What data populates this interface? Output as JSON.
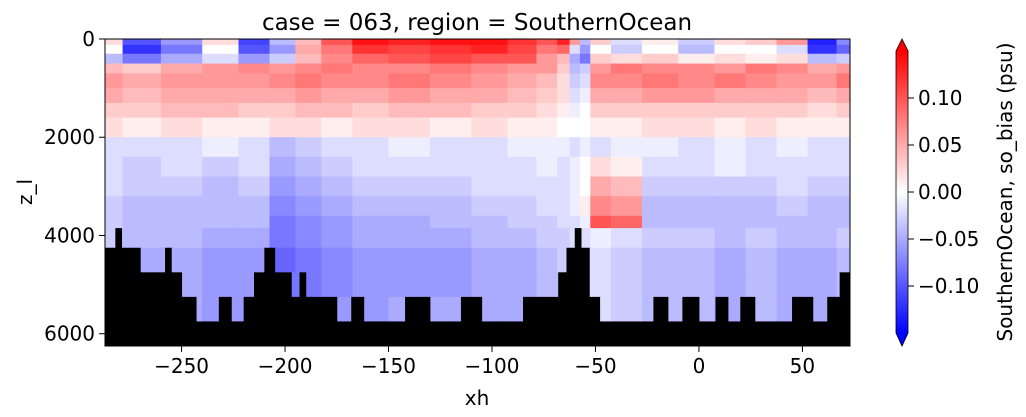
{
  "chart_data": {
    "type": "heatmap",
    "title": "case = 063, region = SouthernOcean",
    "xlabel": "xh",
    "ylabel": "z_l",
    "xlim": [
      -287,
      73
    ],
    "ylim": [
      6250,
      0
    ],
    "y_inverted": true,
    "x_ticks": [
      -250,
      -200,
      -150,
      -100,
      -50,
      0,
      50
    ],
    "x_tick_labels": [
      "−250",
      "−200",
      "−150",
      "−100",
      "−50",
      "0",
      "50"
    ],
    "y_ticks": [
      0,
      2000,
      4000,
      6000
    ],
    "y_tick_labels": [
      "0",
      "2000",
      "4000",
      "6000"
    ],
    "colorbar": {
      "label": "SouthernOcean, so_bias (psu)",
      "min": -0.15,
      "max": 0.15,
      "cmap": "bwr",
      "extend": "both",
      "ticks": [
        0.1,
        0.05,
        0.0,
        -0.05,
        -0.1
      ],
      "tick_labels": [
        "0.10",
        "0.05",
        "0.00",
        "−0.05",
        "−0.10"
      ]
    },
    "land_color": "#000000",
    "colors": {
      "positive": "#ff0000",
      "neutral": "#ffffff",
      "negative": "#0000ff"
    },
    "depth_levels": [
      0,
      120,
      300,
      500,
      700,
      1000,
      1300,
      1600,
      2000,
      2400,
      2800,
      3200,
      3600,
      3850,
      4250,
      4750,
      5250,
      5750,
      6250
    ],
    "x_nodes": [
      -287,
      -270,
      -250,
      -230,
      -215,
      -200,
      -190,
      -175,
      -160,
      -140,
      -120,
      -100,
      -85,
      -72,
      -65,
      -60,
      -55,
      -50,
      -35,
      -20,
      0,
      15,
      30,
      45,
      60,
      73
    ],
    "bias_rows": [
      [
        0.02,
        -0.1,
        -0.06,
        0.02,
        -0.11,
        -0.04,
        0.04,
        0.1,
        0.14,
        0.13,
        0.14,
        0.14,
        0.12,
        0.1,
        0.13,
        0.06,
        -0.04,
        0.03,
        -0.02,
        0.01,
        -0.03,
        0.02,
        0.03,
        0.06,
        -0.13,
        -0.07
      ],
      [
        0.0,
        -0.12,
        -0.08,
        0.0,
        -0.1,
        -0.06,
        0.05,
        0.08,
        0.12,
        0.11,
        0.12,
        0.13,
        0.11,
        0.08,
        0.09,
        -0.02,
        -0.06,
        0.0,
        -0.03,
        0.0,
        -0.04,
        0.0,
        0.0,
        -0.02,
        -0.12,
        -0.09
      ],
      [
        -0.04,
        -0.08,
        -0.05,
        -0.02,
        -0.06,
        -0.03,
        0.04,
        0.07,
        0.09,
        0.1,
        0.11,
        0.1,
        0.1,
        0.06,
        0.04,
        -0.05,
        -0.08,
        0.03,
        0.02,
        0.03,
        0.01,
        0.02,
        0.01,
        0.02,
        -0.04,
        -0.03
      ],
      [
        0.04,
        0.03,
        0.05,
        0.06,
        0.07,
        0.06,
        0.07,
        0.08,
        0.07,
        0.07,
        0.08,
        0.07,
        0.06,
        0.06,
        0.03,
        -0.04,
        -0.03,
        0.06,
        0.08,
        0.07,
        0.07,
        0.06,
        0.08,
        0.07,
        0.05,
        0.06
      ],
      [
        0.06,
        0.05,
        0.06,
        0.06,
        0.06,
        0.07,
        0.08,
        0.07,
        0.07,
        0.08,
        0.07,
        0.06,
        0.05,
        0.04,
        0.02,
        -0.03,
        -0.02,
        0.07,
        0.07,
        0.08,
        0.07,
        0.08,
        0.07,
        0.06,
        0.06,
        0.08
      ],
      [
        0.05,
        0.04,
        0.05,
        0.05,
        0.05,
        0.05,
        0.06,
        0.05,
        0.05,
        0.06,
        0.05,
        0.05,
        0.04,
        0.03,
        0.02,
        -0.02,
        -0.01,
        0.05,
        0.05,
        0.06,
        0.06,
        0.05,
        0.05,
        0.05,
        0.04,
        0.05
      ],
      [
        0.03,
        0.03,
        0.04,
        0.04,
        0.03,
        0.03,
        0.04,
        0.04,
        0.03,
        0.04,
        0.04,
        0.03,
        0.03,
        0.02,
        0.01,
        -0.01,
        0.0,
        0.03,
        0.03,
        0.03,
        0.03,
        0.03,
        0.03,
        0.03,
        0.02,
        0.03
      ],
      [
        0.02,
        0.01,
        0.02,
        0.01,
        0.01,
        0.02,
        0.02,
        0.01,
        0.02,
        0.02,
        0.01,
        0.02,
        0.01,
        0.01,
        0.0,
        0.0,
        0.0,
        0.01,
        0.01,
        0.02,
        0.02,
        0.01,
        0.02,
        0.01,
        0.01,
        0.01
      ],
      [
        -0.02,
        -0.02,
        -0.02,
        -0.01,
        -0.02,
        -0.04,
        -0.03,
        -0.02,
        -0.02,
        -0.01,
        -0.02,
        -0.02,
        -0.01,
        -0.01,
        -0.01,
        -0.02,
        -0.01,
        -0.02,
        -0.01,
        -0.01,
        -0.02,
        -0.01,
        -0.02,
        -0.01,
        -0.02,
        -0.02
      ],
      [
        -0.02,
        -0.03,
        -0.02,
        -0.03,
        -0.02,
        -0.05,
        -0.04,
        -0.03,
        -0.02,
        -0.02,
        -0.02,
        -0.02,
        -0.02,
        -0.01,
        -0.02,
        -0.01,
        0.0,
        0.02,
        0.01,
        -0.02,
        -0.02,
        -0.01,
        -0.02,
        -0.02,
        -0.02,
        -0.02
      ],
      [
        -0.02,
        -0.03,
        -0.03,
        -0.04,
        -0.03,
        -0.06,
        -0.05,
        -0.04,
        -0.03,
        -0.03,
        -0.03,
        -0.02,
        -0.02,
        -0.02,
        -0.02,
        -0.01,
        0.0,
        0.05,
        0.04,
        -0.03,
        -0.03,
        -0.03,
        -0.03,
        -0.02,
        -0.03,
        -0.03
      ],
      [
        -0.03,
        -0.04,
        -0.04,
        -0.04,
        -0.04,
        -0.07,
        -0.06,
        -0.05,
        -0.04,
        -0.04,
        -0.04,
        -0.03,
        -0.03,
        -0.02,
        -0.02,
        -0.01,
        0.01,
        0.07,
        0.06,
        -0.04,
        -0.04,
        -0.04,
        -0.04,
        -0.03,
        -0.04,
        -0.04
      ],
      [
        -0.03,
        -0.04,
        -0.04,
        -0.04,
        -0.04,
        -0.08,
        -0.07,
        -0.06,
        -0.05,
        -0.05,
        -0.04,
        -0.04,
        -0.03,
        -0.03,
        -0.02,
        -0.02,
        -0.01,
        0.1,
        0.09,
        -0.04,
        -0.04,
        -0.04,
        -0.04,
        -0.04,
        -0.04,
        -0.04
      ],
      [
        -0.03,
        -0.04,
        -0.04,
        -0.05,
        -0.05,
        -0.08,
        -0.07,
        -0.06,
        -0.05,
        -0.05,
        -0.05,
        -0.04,
        -0.04,
        -0.03,
        -0.03,
        -0.02,
        -0.02,
        -0.01,
        -0.02,
        -0.03,
        -0.03,
        -0.04,
        -0.03,
        -0.04,
        -0.04,
        -0.03
      ],
      [
        -0.04,
        -0.05,
        -0.05,
        -0.06,
        -0.06,
        -0.09,
        -0.08,
        -0.07,
        -0.06,
        -0.06,
        -0.06,
        -0.05,
        -0.05,
        -0.04,
        -0.03,
        -0.03,
        -0.02,
        -0.02,
        -0.03,
        -0.04,
        -0.04,
        -0.05,
        -0.04,
        -0.05,
        -0.05,
        -0.04
      ],
      [
        -0.04,
        -0.05,
        -0.05,
        -0.06,
        -0.06,
        -0.08,
        -0.08,
        -0.07,
        -0.06,
        -0.06,
        -0.06,
        -0.05,
        -0.05,
        -0.04,
        -0.04,
        -0.03,
        -0.02,
        -0.02,
        -0.03,
        -0.04,
        -0.04,
        -0.05,
        -0.04,
        -0.05,
        -0.05,
        -0.04
      ],
      [
        -0.04,
        -0.05,
        -0.05,
        -0.06,
        -0.06,
        -0.07,
        -0.07,
        -0.06,
        -0.06,
        -0.05,
        -0.05,
        -0.05,
        -0.05,
        -0.04,
        -0.04,
        -0.03,
        -0.02,
        -0.02,
        -0.03,
        -0.04,
        -0.04,
        -0.05,
        -0.04,
        -0.05,
        -0.05,
        -0.04
      ],
      [
        -0.04,
        -0.05,
        -0.05,
        -0.06,
        -0.06,
        -0.07,
        -0.07,
        -0.06,
        -0.06,
        -0.05,
        -0.05,
        -0.05,
        -0.05,
        -0.04,
        -0.04,
        -0.03,
        -0.02,
        -0.02,
        -0.03,
        -0.04,
        -0.04,
        -0.05,
        -0.04,
        -0.05,
        -0.05,
        -0.04
      ]
    ],
    "seafloor_depth": [
      {
        "x": -287,
        "depth": 4250
      },
      {
        "x": -282,
        "depth": 3850
      },
      {
        "x": -279,
        "depth": 4250
      },
      {
        "x": -270,
        "depth": 4750
      },
      {
        "x": -262,
        "depth": 4750
      },
      {
        "x": -258,
        "depth": 4250
      },
      {
        "x": -255,
        "depth": 4750
      },
      {
        "x": -250,
        "depth": 5250
      },
      {
        "x": -243,
        "depth": 5750
      },
      {
        "x": -236,
        "depth": 5750
      },
      {
        "x": -232,
        "depth": 5250
      },
      {
        "x": -226,
        "depth": 5750
      },
      {
        "x": -220,
        "depth": 5250
      },
      {
        "x": -215,
        "depth": 4750
      },
      {
        "x": -210,
        "depth": 4250
      },
      {
        "x": -205,
        "depth": 4750
      },
      {
        "x": -197,
        "depth": 5250
      },
      {
        "x": -193,
        "depth": 4750
      },
      {
        "x": -190,
        "depth": 5250
      },
      {
        "x": -180,
        "depth": 5250
      },
      {
        "x": -175,
        "depth": 5750
      },
      {
        "x": -168,
        "depth": 5250
      },
      {
        "x": -162,
        "depth": 5750
      },
      {
        "x": -150,
        "depth": 5750
      },
      {
        "x": -142,
        "depth": 5250
      },
      {
        "x": -130,
        "depth": 5750
      },
      {
        "x": -120,
        "depth": 5750
      },
      {
        "x": -115,
        "depth": 5250
      },
      {
        "x": -105,
        "depth": 5750
      },
      {
        "x": -95,
        "depth": 5750
      },
      {
        "x": -85,
        "depth": 5250
      },
      {
        "x": -75,
        "depth": 5250
      },
      {
        "x": -68,
        "depth": 4750
      },
      {
        "x": -64,
        "depth": 4250
      },
      {
        "x": -60,
        "depth": 3850
      },
      {
        "x": -57,
        "depth": 4250
      },
      {
        "x": -53,
        "depth": 5250
      },
      {
        "x": -48,
        "depth": 5750
      },
      {
        "x": -40,
        "depth": 5750
      },
      {
        "x": -30,
        "depth": 5750
      },
      {
        "x": -22,
        "depth": 5250
      },
      {
        "x": -15,
        "depth": 5750
      },
      {
        "x": -8,
        "depth": 5250
      },
      {
        "x": 0,
        "depth": 5750
      },
      {
        "x": 8,
        "depth": 5250
      },
      {
        "x": 14,
        "depth": 5750
      },
      {
        "x": 20,
        "depth": 5250
      },
      {
        "x": 27,
        "depth": 5750
      },
      {
        "x": 35,
        "depth": 5750
      },
      {
        "x": 45,
        "depth": 5250
      },
      {
        "x": 55,
        "depth": 5750
      },
      {
        "x": 62,
        "depth": 5250
      },
      {
        "x": 68,
        "depth": 4750
      },
      {
        "x": 73,
        "depth": 4250
      }
    ]
  }
}
